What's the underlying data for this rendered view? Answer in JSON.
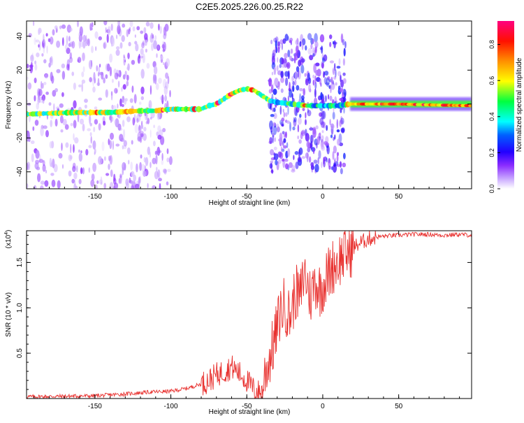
{
  "title": "C2E5.2025.226.00.25.R22",
  "colors": {
    "snr_line": "#e8302e",
    "axis": "#000000",
    "colormap": [
      "#ffffff",
      "#c9a8ff",
      "#9a3cff",
      "#4b00ff",
      "#0000ff",
      "#00ffff",
      "#00ff00",
      "#ffff00",
      "#ff8000",
      "#ff0000",
      "#ff0080"
    ]
  },
  "chart_data": [
    {
      "type": "heatmap",
      "title": "C2E5.2025.226.00.25.R22",
      "xlabel": "Height of straight line (km)",
      "ylabel": "Frequency (Hz)",
      "xlim": [
        -195,
        98
      ],
      "ylim": [
        -50,
        49
      ],
      "x_ticks": [
        "-150",
        "-100",
        "-50",
        "0",
        "50"
      ],
      "x_tick_values": [
        -150,
        -100,
        -50,
        0,
        50
      ],
      "y_ticks": [
        "40",
        "20",
        "0",
        "-20",
        "-40"
      ],
      "y_tick_values": [
        40,
        20,
        0,
        -20,
        -40
      ],
      "colorbar": {
        "label": "Normalized spectral amplitude",
        "range": [
          0,
          0.93
        ],
        "ticks": [
          "0.0",
          "0.2",
          "0.4",
          "0.6",
          "0.8"
        ],
        "tick_values": [
          0,
          0.2,
          0.4,
          0.6,
          0.8
        ]
      },
      "ridge": {
        "x": [
          -195,
          -180,
          -165,
          -150,
          -140,
          -130,
          -120,
          -110,
          -100,
          -90,
          -80,
          -75,
          -70,
          -65,
          -60,
          -55,
          -50,
          -45,
          -40,
          -35,
          -30,
          -20,
          -10,
          0,
          10,
          18,
          30,
          50,
          70,
          98
        ],
        "y": [
          -6,
          -5.5,
          -5,
          -5,
          -5,
          -4.5,
          -4,
          -4,
          -3,
          -3,
          -3,
          -1,
          0,
          3,
          6,
          8,
          9,
          8,
          5,
          2,
          1,
          0,
          -1,
          -1,
          -1,
          0,
          0,
          0,
          -0.5,
          -1
        ]
      },
      "regions": [
        {
          "name": "scatter-left",
          "x": [
            -195,
            -100
          ],
          "y": [
            -50,
            49
          ],
          "intensity": 0.08
        },
        {
          "name": "scatter-mid",
          "x": [
            -35,
            15
          ],
          "y": [
            -40,
            40
          ],
          "intensity": 0.15
        },
        {
          "name": "steady-band",
          "x": [
            18,
            98
          ],
          "y": [
            -4,
            4
          ],
          "intensity": 0.75
        }
      ]
    },
    {
      "type": "line",
      "xlabel": "Height of straight line (km)",
      "ylabel": "SNR (10 * v/v)",
      "y_multiplier": "(x10",
      "y_multiplier_exp": "4",
      "xlim": [
        -195,
        98
      ],
      "ylim": [
        0,
        18500
      ],
      "x_ticks": [
        "-150",
        "-100",
        "-50",
        "0",
        "50"
      ],
      "x_tick_values": [
        -150,
        -100,
        -50,
        0,
        50
      ],
      "y_ticks": [
        "0.5",
        "1.0",
        "1.5"
      ],
      "y_tick_values": [
        5000,
        10000,
        15000
      ],
      "series": [
        {
          "x": [
            -195,
            -170,
            -150,
            -130,
            -115,
            -100,
            -90,
            -80,
            -75,
            -70,
            -65,
            -60,
            -55,
            -50,
            -45,
            -40,
            -38,
            -35,
            -32,
            -30,
            -28,
            -25,
            -22,
            -20,
            -18,
            -15,
            -12,
            -10,
            -8,
            -5,
            -2,
            0,
            3,
            6,
            10,
            15,
            20,
            25,
            30,
            35,
            40,
            50,
            60,
            70,
            80,
            90,
            98
          ],
          "values": [
            200,
            250,
            300,
            500,
            700,
            800,
            1100,
            1600,
            2000,
            2600,
            3000,
            3500,
            2800,
            2000,
            900,
            600,
            2800,
            4500,
            6200,
            7800,
            9500,
            10500,
            9000,
            10000,
            11800,
            11000,
            14000,
            12500,
            11200,
            13000,
            12000,
            12500,
            13500,
            14500,
            15200,
            16000,
            16600,
            17200,
            17600,
            17800,
            17900,
            18000,
            18100,
            18100,
            18000,
            18100,
            18000
          ]
        }
      ]
    }
  ]
}
